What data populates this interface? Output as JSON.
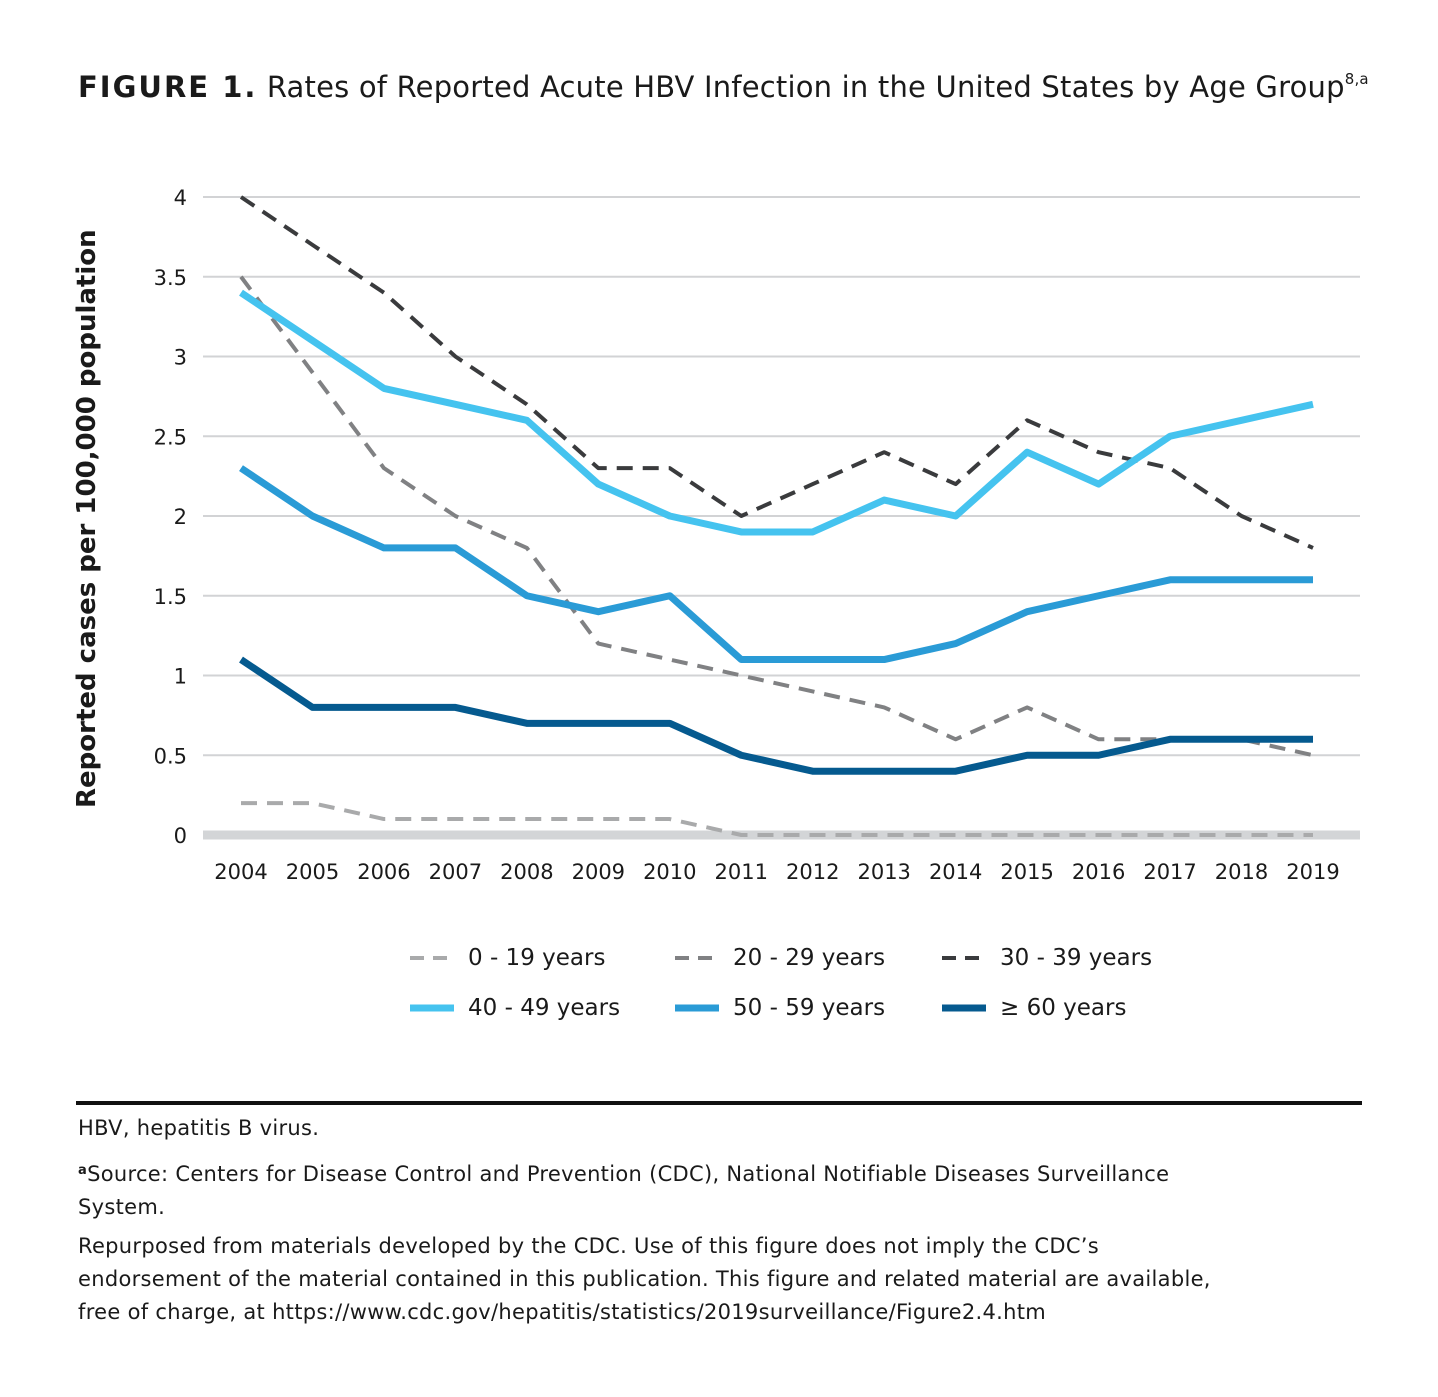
{
  "figure": {
    "label": "FIGURE 1.",
    "title": "Rates of Reported Acute HBV Infection in the United States by Age Group",
    "title_superscript": "8,a"
  },
  "chart_data": {
    "type": "line",
    "title": "Rates of Reported Acute HBV Infection in the United States by Age Group",
    "xlabel": "",
    "ylabel": "Reported cases per 100,000 population",
    "ylim": [
      0,
      4
    ],
    "yticks": [
      "0",
      "0.5",
      "1",
      "1.5",
      "2",
      "2.5",
      "3",
      "3.5",
      "4"
    ],
    "ytick_values": [
      0,
      0.5,
      1,
      1.5,
      2,
      2.5,
      3,
      3.5,
      4
    ],
    "grid": true,
    "legend_position": "bottom",
    "x": [
      "2004",
      "2005",
      "2006",
      "2007",
      "2008",
      "2009",
      "2010",
      "2011",
      "2012",
      "2013",
      "2014",
      "2015",
      "2016",
      "2017",
      "2018",
      "2019"
    ],
    "series": [
      {
        "name": "0 - 19 years",
        "color": "#a9aaab",
        "style": "dashed",
        "values": [
          0.2,
          0.2,
          0.1,
          0.1,
          0.1,
          0.1,
          0.1,
          0,
          0,
          0,
          0,
          0,
          0,
          0,
          0,
          0
        ]
      },
      {
        "name": "20 - 29 years",
        "color": "#808183",
        "style": "dashed",
        "values": [
          3.5,
          2.9,
          2.3,
          2.0,
          1.8,
          1.2,
          1.1,
          1.0,
          0.9,
          0.8,
          0.6,
          0.8,
          0.6,
          0.6,
          0.6,
          0.5
        ]
      },
      {
        "name": "30 - 39 years",
        "color": "#3a3b3d",
        "style": "dashed",
        "values": [
          4.0,
          3.7,
          3.4,
          3.0,
          2.7,
          2.3,
          2.3,
          2.0,
          2.2,
          2.4,
          2.2,
          2.6,
          2.4,
          2.3,
          2.0,
          1.8
        ]
      },
      {
        "name": "40 - 49 years",
        "color": "#45c3ef",
        "style": "solid",
        "values": [
          3.4,
          3.1,
          2.8,
          2.7,
          2.6,
          2.2,
          2.0,
          1.9,
          1.9,
          2.1,
          2.0,
          2.4,
          2.2,
          2.5,
          2.6,
          2.7
        ]
      },
      {
        "name": "50 - 59 years",
        "color": "#2a9bd6",
        "style": "solid",
        "values": [
          2.3,
          2.0,
          1.8,
          1.8,
          1.5,
          1.4,
          1.5,
          1.1,
          1.1,
          1.1,
          1.2,
          1.4,
          1.5,
          1.6,
          1.6,
          1.6
        ]
      },
      {
        "name": "≥ 60 years",
        "color": "#055a8f",
        "style": "solid",
        "values": [
          1.1,
          0.8,
          0.8,
          0.8,
          0.7,
          0.7,
          0.7,
          0.5,
          0.4,
          0.4,
          0.4,
          0.5,
          0.5,
          0.6,
          0.6,
          0.6
        ]
      }
    ]
  },
  "footnotes": {
    "abbrev": "HBV, hepatitis B virus.",
    "source_marker": "a",
    "source_line1": "Source: Centers for Disease Control and Prevention (CDC), National Notifiable Diseases Surveillance",
    "source_line2": "System.",
    "repurposed_line1": "Repurposed from materials developed by the CDC. Use of this figure does not imply the CDC’s",
    "repurposed_line2": "endorsement of the material contained in this publication. This figure and related material are available,",
    "repurposed_line3": "free of charge, at https://www.cdc.gov/hepatitis/statistics/2019surveillance/Figure2.4.htm"
  }
}
